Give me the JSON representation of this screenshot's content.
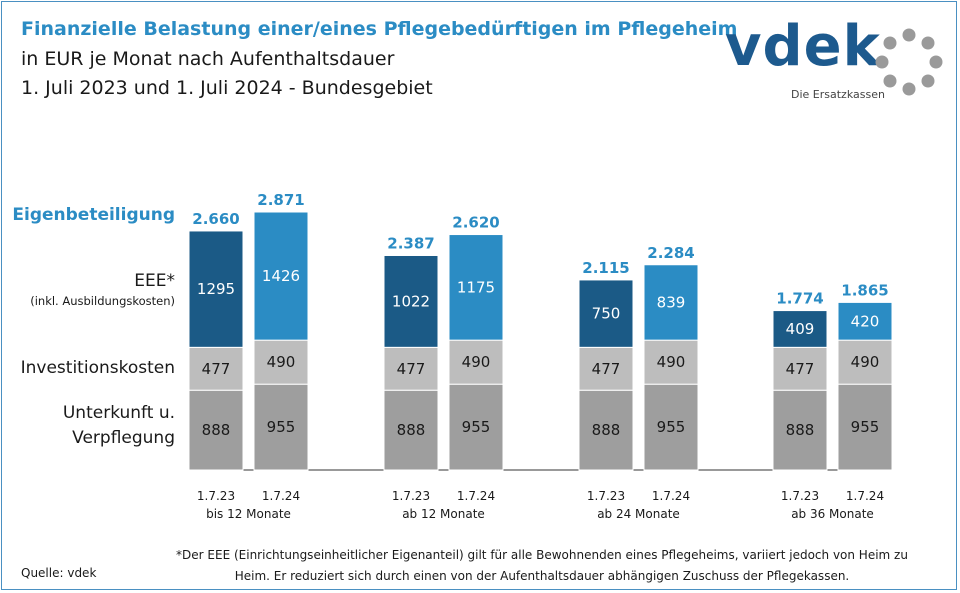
{
  "header": {
    "title": "Finanzielle Belastung einer/eines Pflegebedürftigen im Pflegeheim",
    "subtitle1": "in EUR je Monat nach Aufenthaltsdauer",
    "subtitle2": "1. Juli 2023 und 1. Juli 2024 - Bundesgebiet"
  },
  "logo": {
    "name": "vdek",
    "tagline": "Die Ersatzkassen"
  },
  "row_labels": {
    "eigen": "Eigenbeteiligung",
    "eee": "EEE*",
    "eee_sub": "(inkl. Ausbildungskosten)",
    "invest": "Investitionskosten",
    "unter1": "Unterkunft u.",
    "unter2": "Verpflegung"
  },
  "footer": {
    "source": "Quelle: vdek",
    "footnote": "*Der EEE (Einrichtungseinheitlicher Eigenanteil) gilt für alle Bewohnenden eines Pflegeheims, variiert jedoch von Heim zu Heim. Er reduziert sich durch einen von der Aufenthaltsdauer abhängigen Zuschuss der Pflegekassen."
  },
  "colors": {
    "eee_2023": "#1b5a86",
    "eee_2024": "#2b8cc4",
    "invest": "#bdbdbd",
    "unterkunft": "#9e9e9e",
    "total_text": "#2b8cc4"
  },
  "chart_data": {
    "type": "bar",
    "stacked": true,
    "groups": [
      "bis 12 Monate",
      "ab 12 Monate",
      "ab 24 Monate",
      "ab 36 Monate"
    ],
    "bar_labels": [
      "1.7.23",
      "1.7.24"
    ],
    "series": [
      {
        "name": "Unterkunft u. Verpflegung",
        "values_2023": [
          888,
          888,
          888,
          888
        ],
        "values_2024": [
          955,
          955,
          955,
          955
        ]
      },
      {
        "name": "Investitionskosten",
        "values_2023": [
          477,
          477,
          477,
          477
        ],
        "values_2024": [
          490,
          490,
          490,
          490
        ]
      },
      {
        "name": "EEE*",
        "values_2023": [
          1295,
          1022,
          750,
          409
        ],
        "values_2024": [
          1426,
          1175,
          839,
          420
        ]
      }
    ],
    "totals_2023": [
      "2.660",
      "2.387",
      "2.115",
      "1.774"
    ],
    "totals_2024": [
      "2.871",
      "2.620",
      "2.284",
      "1.865"
    ],
    "ylim": [
      0,
      2871
    ]
  }
}
